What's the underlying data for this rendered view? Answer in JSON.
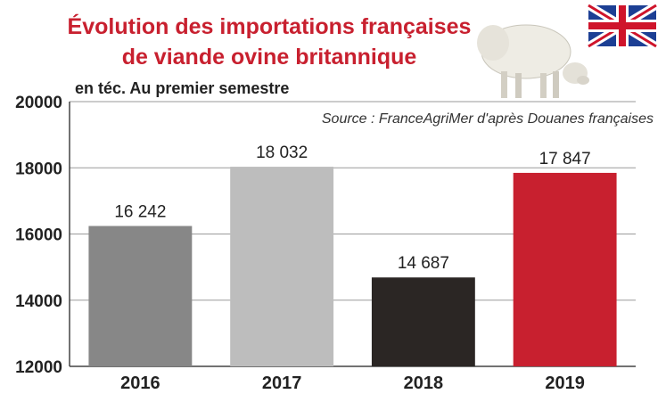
{
  "chart_data": {
    "type": "bar",
    "title_lines": [
      "Évolution des importations françaises",
      "de viande ovine britannique"
    ],
    "subtitle": "en téc. Au premier semestre",
    "source": "Source : FranceAgriMer d'après Douanes françaises",
    "categories": [
      "2016",
      "2017",
      "2018",
      "2019"
    ],
    "values": [
      16242,
      18032,
      14687,
      17847
    ],
    "value_labels": [
      "16 242",
      "18 032",
      "14 687",
      "17 847"
    ],
    "bar_colors": [
      "#878787",
      "#bdbdbd",
      "#2b2624",
      "#c8202f"
    ],
    "yticks": [
      "12000",
      "14000",
      "16000",
      "18000",
      "20000"
    ],
    "ylim": [
      12000,
      20000
    ],
    "grid": true,
    "legend": "none"
  },
  "decorations": {
    "icons": [
      "sheep-icon",
      "uk-flag-icon"
    ]
  }
}
